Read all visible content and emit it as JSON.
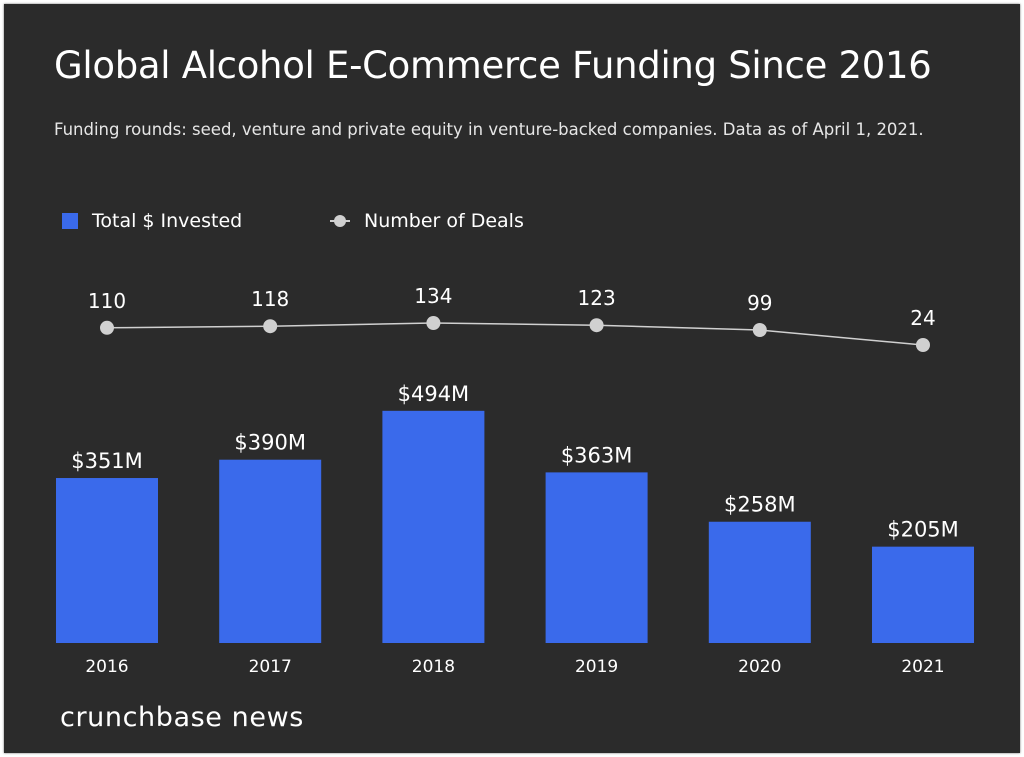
{
  "title": "Global Alcohol E-Commerce Funding Since 2016",
  "subtitle": "Funding rounds: seed, venture and private equity in venture-backed companies. Data as of April 1, 2021.",
  "legend": {
    "bar_label": "Total $ Invested",
    "line_label": "Number of Deals"
  },
  "brand": "crunchbase news",
  "colors": {
    "background": "#2b2b2b",
    "bar": "#3a6aeb",
    "line": "#d0d0d0",
    "text": "#ffffff"
  },
  "chart_data": {
    "type": "bar",
    "categories": [
      "2016",
      "2017",
      "2018",
      "2019",
      "2020",
      "2021"
    ],
    "series": [
      {
        "name": "Total $ Invested",
        "type": "bar",
        "values": [
          351,
          390,
          494,
          363,
          258,
          205
        ],
        "unit": "$M",
        "labels": [
          "$351M",
          "$390M",
          "$494M",
          "$363M",
          "$258M",
          "$205M"
        ]
      },
      {
        "name": "Number of Deals",
        "type": "line",
        "values": [
          110,
          118,
          134,
          123,
          99,
          24
        ],
        "labels": [
          "110",
          "118",
          "134",
          "123",
          "99",
          "24"
        ]
      }
    ],
    "legend_position": "top-left",
    "grid": false
  }
}
